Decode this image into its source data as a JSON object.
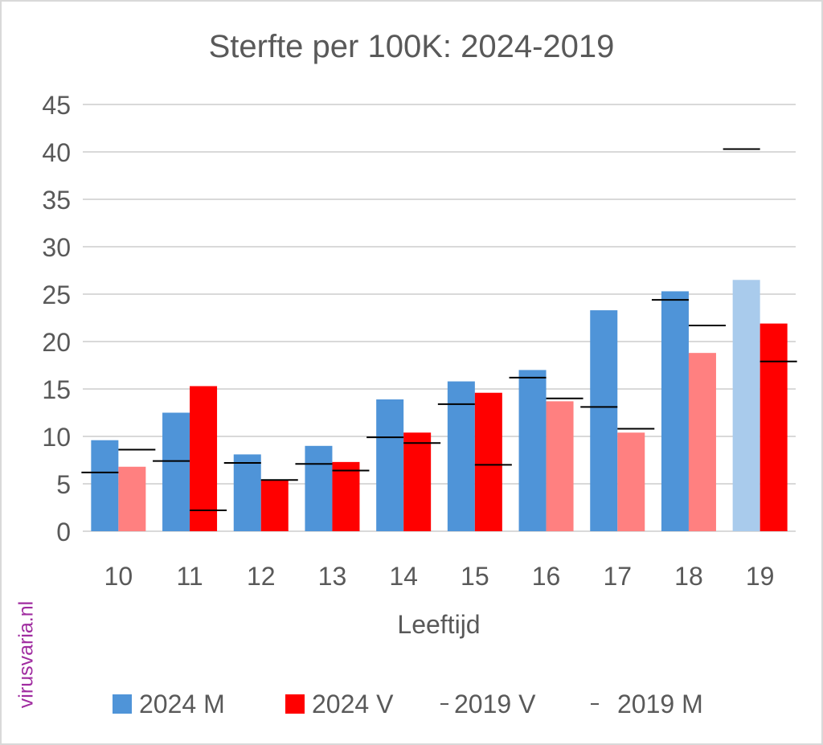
{
  "chart_data": {
    "type": "bar",
    "title": "Sterfte per 100K: 2024-2019",
    "xlabel": "Leeftijd",
    "ylabel": "",
    "ylim": [
      0,
      45
    ],
    "yticks": [
      0,
      5,
      10,
      15,
      20,
      25,
      30,
      35,
      40,
      45
    ],
    "grid": true,
    "legend_position": "bottom",
    "categories": [
      "10",
      "11",
      "12",
      "13",
      "14",
      "15",
      "16",
      "17",
      "18",
      "19"
    ],
    "series": [
      {
        "name": "2024 M",
        "kind": "bar",
        "color": "#4f94d8",
        "light_color": "#a9cbec",
        "values": [
          9.6,
          12.5,
          8.1,
          9.0,
          13.9,
          15.8,
          17.0,
          23.3,
          25.3,
          26.5
        ]
      },
      {
        "name": "2024 V",
        "kind": "bar",
        "color": "#ff0000",
        "light_color": "#ff8080",
        "values": [
          6.8,
          15.3,
          5.4,
          7.3,
          10.4,
          14.6,
          13.7,
          10.4,
          18.8,
          21.9
        ]
      },
      {
        "name": "2019 V",
        "kind": "marker",
        "color": "#000000",
        "values": [
          8.6,
          2.2,
          5.4,
          6.4,
          9.3,
          7.0,
          14.0,
          10.8,
          21.7,
          17.9
        ]
      },
      {
        "name": "2019 M",
        "kind": "marker",
        "color": "#000000",
        "values": [
          6.2,
          7.4,
          7.2,
          7.1,
          9.9,
          13.4,
          16.2,
          13.1,
          24.4,
          40.3
        ]
      }
    ]
  },
  "watermark": "virusvaria.nl"
}
